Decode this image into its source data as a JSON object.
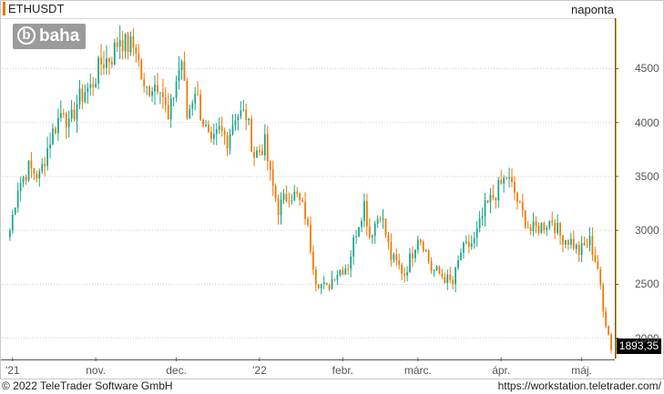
{
  "header": {
    "symbol": "ETHUSDT",
    "period": "naponta"
  },
  "watermark": {
    "brand": "baha",
    "mark": "b"
  },
  "footer": {
    "copyright": "© 2022 TeleTrader Software GmbH",
    "url": "https://workstation.teletrader.com/"
  },
  "colors": {
    "up": "#1aa58c",
    "down": "#f07800",
    "grid": "#cfcfcf",
    "accent": "#f07800"
  },
  "last_price_label": "1893,35",
  "chart_data": {
    "type": "candlestick",
    "title": "ETHUSDT",
    "xlabel": "",
    "ylabel": "",
    "ylim": [
      1820,
      4960
    ],
    "yticks": [
      2000,
      2500,
      3000,
      3500,
      4000,
      4500
    ],
    "ytick_labels": [
      "2000",
      "2500",
      "3000",
      "3500",
      "4000",
      "4500"
    ],
    "xticks": [
      {
        "label": "'21",
        "date": "2021-10-01"
      },
      {
        "label": "nov.",
        "date": "2021-11-01"
      },
      {
        "label": "dec.",
        "date": "2021-12-01"
      },
      {
        "label": "'22",
        "date": "2022-01-01"
      },
      {
        "label": "febr.",
        "date": "2022-02-01"
      },
      {
        "label": "márc.",
        "date": "2022-03-01"
      },
      {
        "label": "ápr.",
        "date": "2022-04-01"
      },
      {
        "label": "máj.",
        "date": "2022-05-01"
      }
    ],
    "grid": true,
    "last_value": 1893.35,
    "anchors": [
      [
        "2021-09-30",
        3000
      ],
      [
        "2021-10-03",
        3410
      ],
      [
        "2021-10-07",
        3580
      ],
      [
        "2021-10-11",
        3500
      ],
      [
        "2021-10-15",
        3850
      ],
      [
        "2021-10-20",
        4150
      ],
      [
        "2021-10-22",
        3950
      ],
      [
        "2021-10-25",
        4180
      ],
      [
        "2021-10-28",
        4300
      ],
      [
        "2021-10-30",
        4320
      ],
      [
        "2021-11-03",
        4550
      ],
      [
        "2021-11-07",
        4620
      ],
      [
        "2021-11-10",
        4800
      ],
      [
        "2021-11-12",
        4720
      ],
      [
        "2021-11-16",
        4700
      ],
      [
        "2021-11-19",
        4280
      ],
      [
        "2021-11-22",
        4350
      ],
      [
        "2021-11-25",
        4380
      ],
      [
        "2021-11-28",
        4000
      ],
      [
        "2021-12-01",
        4400
      ],
      [
        "2021-12-03",
        4580
      ],
      [
        "2021-12-05",
        4050
      ],
      [
        "2021-12-08",
        4320
      ],
      [
        "2021-12-10",
        4100
      ],
      [
        "2021-12-14",
        3760
      ],
      [
        "2021-12-17",
        3920
      ],
      [
        "2021-12-20",
        3850
      ],
      [
        "2021-12-23",
        4080
      ],
      [
        "2021-12-27",
        4070
      ],
      [
        "2021-12-30",
        3700
      ],
      [
        "2022-01-03",
        3800
      ],
      [
        "2022-01-05",
        3500
      ],
      [
        "2022-01-08",
        3200
      ],
      [
        "2022-01-12",
        3350
      ],
      [
        "2022-01-15",
        3310
      ],
      [
        "2022-01-18",
        3150
      ],
      [
        "2022-01-22",
        2550
      ],
      [
        "2022-01-26",
        2450
      ],
      [
        "2022-01-29",
        2600
      ],
      [
        "2022-02-03",
        2680
      ],
      [
        "2022-02-06",
        3000
      ],
      [
        "2022-02-09",
        3250
      ],
      [
        "2022-02-11",
        2950
      ],
      [
        "2022-02-15",
        3180
      ],
      [
        "2022-02-19",
        2750
      ],
      [
        "2022-02-24",
        2600
      ],
      [
        "2022-02-27",
        2800
      ],
      [
        "2022-03-01",
        2960
      ],
      [
        "2022-03-03",
        2880
      ],
      [
        "2022-03-06",
        2640
      ],
      [
        "2022-03-10",
        2580
      ],
      [
        "2022-03-14",
        2500
      ],
      [
        "2022-03-17",
        2800
      ],
      [
        "2022-03-22",
        2900
      ],
      [
        "2022-03-26",
        3200
      ],
      [
        "2022-03-30",
        3350
      ],
      [
        "2022-04-03",
        3500
      ],
      [
        "2022-04-06",
        3350
      ],
      [
        "2022-04-08",
        3200
      ],
      [
        "2022-04-12",
        3000
      ],
      [
        "2022-04-16",
        3040
      ],
      [
        "2022-04-20",
        3100
      ],
      [
        "2022-04-23",
        2950
      ],
      [
        "2022-04-27",
        2900
      ],
      [
        "2022-04-30",
        2800
      ],
      [
        "2022-05-04",
        2900
      ],
      [
        "2022-05-07",
        2650
      ],
      [
        "2022-05-09",
        2240
      ],
      [
        "2022-05-11",
        2070
      ],
      [
        "2022-05-12",
        1893.35
      ]
    ]
  }
}
